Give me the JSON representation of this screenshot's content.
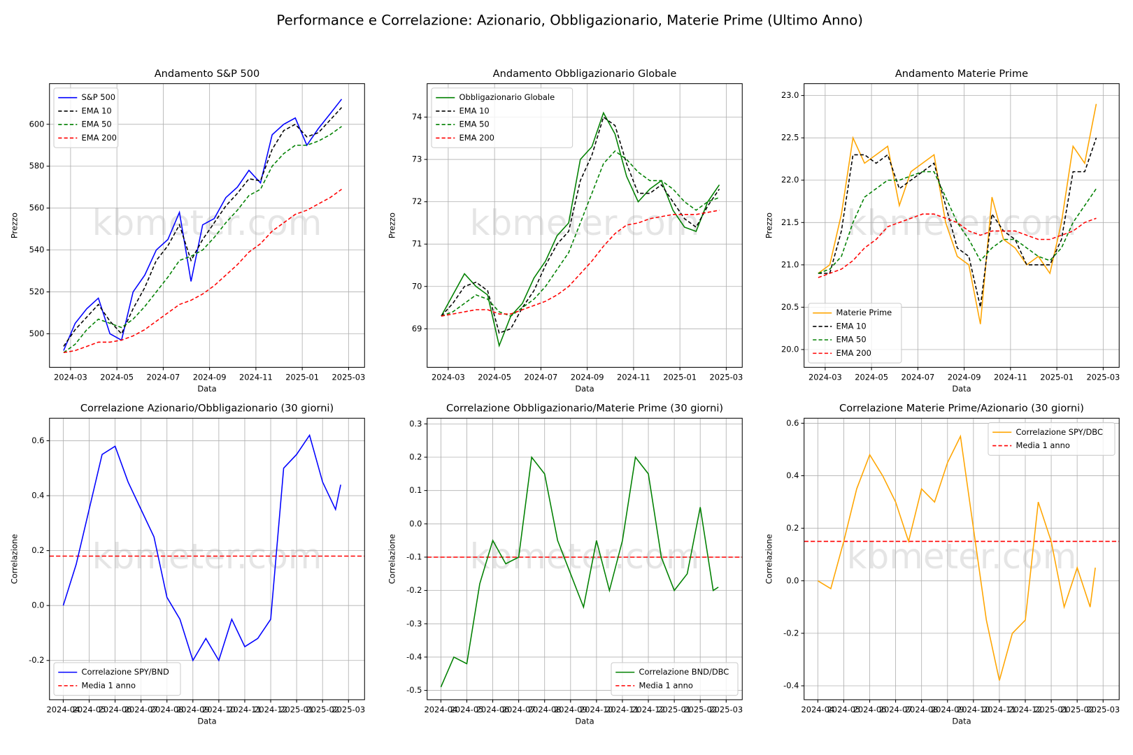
{
  "title": "Performance e Correlazione: Azionario, Obbligazionario, Materie Prime (Ultimo Anno)",
  "watermark": "kbmeter.com",
  "chart_data": [
    {
      "type": "line",
      "title": "Andamento S&P 500",
      "xlabel": "Data",
      "ylabel": "Prezzo",
      "grid": true,
      "legend": "upper left",
      "x": [
        2.7,
        3.2,
        3.7,
        4.2,
        4.7,
        5.2,
        5.7,
        6.2,
        6.7,
        7.2,
        7.7,
        8.2,
        8.7,
        9.2,
        9.7,
        10.2,
        10.7,
        11.2,
        11.7,
        12.2,
        12.7,
        13.2,
        13.7,
        14.2,
        14.7
      ],
      "xlim": [
        2.09,
        15.69
      ],
      "xticks": [
        {
          "value": 3,
          "label": "2024-03"
        },
        {
          "value": 5,
          "label": "2024-05"
        },
        {
          "value": 7,
          "label": "2024-07"
        },
        {
          "value": 9,
          "label": "2024-09"
        },
        {
          "value": 11,
          "label": "2024-11"
        },
        {
          "value": 13,
          "label": "2025-01"
        },
        {
          "value": 15,
          "label": "2025-03"
        }
      ],
      "ylim": [
        484,
        619.4
      ],
      "yticks": [
        500,
        520,
        540,
        560,
        580,
        600
      ],
      "series": [
        {
          "name": "S&P 500",
          "color": "#0000ff",
          "dashed": false,
          "values": [
            492,
            505,
            512,
            517,
            500,
            497,
            520,
            528,
            540,
            545,
            558,
            525,
            552,
            555,
            565,
            570,
            578,
            572,
            595,
            600,
            603,
            590,
            598,
            605,
            612
          ]
        },
        {
          "name": "EMA 10",
          "color": "#000000",
          "dashed": true,
          "values": [
            494,
            502,
            508,
            514,
            506,
            500,
            512,
            522,
            535,
            542,
            552,
            535,
            545,
            553,
            561,
            567,
            574,
            573,
            588,
            597,
            600,
            594,
            596,
            602,
            608
          ]
        },
        {
          "name": "EMA 50",
          "color": "#008000",
          "dashed": true,
          "values": [
            491,
            495,
            502,
            507,
            505,
            503,
            507,
            513,
            520,
            527,
            535,
            537,
            540,
            546,
            553,
            559,
            566,
            569,
            580,
            586,
            590,
            590,
            592,
            595,
            599
          ]
        },
        {
          "name": "EMA 200",
          "color": "#ff0000",
          "dashed": true,
          "values": [
            491,
            492,
            494,
            496,
            496,
            497,
            499,
            502,
            506,
            510,
            514,
            516,
            519,
            523,
            528,
            533,
            539,
            543,
            549,
            553,
            557,
            559,
            562,
            565,
            569
          ]
        }
      ]
    },
    {
      "type": "line",
      "title": "Andamento Obbligazionario Globale",
      "xlabel": "Data",
      "ylabel": "Prezzo",
      "grid": true,
      "legend": "upper left",
      "x": [
        2.7,
        3.2,
        3.7,
        4.2,
        4.7,
        5.2,
        5.7,
        6.2,
        6.7,
        7.2,
        7.7,
        8.2,
        8.7,
        9.2,
        9.7,
        10.2,
        10.7,
        11.2,
        11.7,
        12.2,
        12.7,
        13.2,
        13.7,
        14.2,
        14.7
      ],
      "xlim": [
        2.09,
        15.69
      ],
      "xticks": [
        {
          "value": 3,
          "label": "2024-03"
        },
        {
          "value": 5,
          "label": "2024-05"
        },
        {
          "value": 7,
          "label": "2024-07"
        },
        {
          "value": 9,
          "label": "2024-09"
        },
        {
          "value": 11,
          "label": "2024-11"
        },
        {
          "value": 13,
          "label": "2025-01"
        },
        {
          "value": 15,
          "label": "2025-03"
        }
      ],
      "ylim": [
        68.09,
        74.79
      ],
      "yticks": [
        69,
        70,
        71,
        72,
        73,
        74
      ],
      "series": [
        {
          "name": "Obbligazionario Globale",
          "color": "#008000",
          "dashed": false,
          "values": [
            69.3,
            69.8,
            70.3,
            70.0,
            69.8,
            68.6,
            69.3,
            69.6,
            70.2,
            70.6,
            71.2,
            71.5,
            73.0,
            73.3,
            74.1,
            73.6,
            72.6,
            72.0,
            72.3,
            72.5,
            71.8,
            71.4,
            71.3,
            72.0,
            72.4
          ]
        },
        {
          "name": "EMA 10",
          "color": "#000000",
          "dashed": true,
          "values": [
            69.3,
            69.6,
            70.0,
            70.1,
            69.9,
            68.9,
            69.0,
            69.5,
            69.9,
            70.5,
            71.0,
            71.3,
            72.5,
            73.1,
            74.0,
            73.8,
            72.9,
            72.2,
            72.2,
            72.4,
            72.0,
            71.6,
            71.4,
            71.9,
            72.3
          ]
        },
        {
          "name": "EMA 50",
          "color": "#008000",
          "dashed": true,
          "values": [
            69.3,
            69.4,
            69.6,
            69.8,
            69.7,
            69.4,
            69.3,
            69.5,
            69.7,
            70.0,
            70.4,
            70.8,
            71.5,
            72.2,
            72.9,
            73.2,
            73.0,
            72.7,
            72.5,
            72.5,
            72.3,
            72.0,
            71.8,
            72.0,
            72.1
          ]
        },
        {
          "name": "EMA 200",
          "color": "#ff0000",
          "dashed": true,
          "values": [
            69.3,
            69.35,
            69.4,
            69.45,
            69.45,
            69.35,
            69.35,
            69.45,
            69.55,
            69.65,
            69.8,
            70.0,
            70.3,
            70.6,
            70.95,
            71.25,
            71.45,
            71.5,
            71.6,
            71.65,
            71.7,
            71.7,
            71.7,
            71.75,
            71.8
          ]
        }
      ]
    },
    {
      "type": "line",
      "title": "Andamento Materie Prime",
      "xlabel": "Data",
      "ylabel": "Prezzo",
      "grid": true,
      "legend": "lower left",
      "x": [
        2.7,
        3.2,
        3.7,
        4.2,
        4.7,
        5.2,
        5.7,
        6.2,
        6.7,
        7.2,
        7.7,
        8.2,
        8.7,
        9.2,
        9.7,
        10.2,
        10.7,
        11.2,
        11.7,
        12.2,
        12.7,
        13.2,
        13.7,
        14.2,
        14.7
      ],
      "xlim": [
        2.09,
        15.69
      ],
      "xticks": [
        {
          "value": 3,
          "label": "2024-03"
        },
        {
          "value": 5,
          "label": "2024-05"
        },
        {
          "value": 7,
          "label": "2024-07"
        },
        {
          "value": 9,
          "label": "2024-09"
        },
        {
          "value": 11,
          "label": "2024-11"
        },
        {
          "value": 13,
          "label": "2025-01"
        },
        {
          "value": 15,
          "label": "2025-03"
        }
      ],
      "ylim": [
        19.79,
        23.14
      ],
      "yticks": [
        {
          "value": 20,
          "label": "20.0"
        },
        20.5,
        {
          "value": 21,
          "label": "21.0"
        },
        21.5,
        {
          "value": 22,
          "label": "22.0"
        },
        22.5,
        {
          "value": 23,
          "label": "23.0"
        }
      ],
      "series": [
        {
          "name": "Materie Prime",
          "color": "#ffa500",
          "dashed": false,
          "values": [
            20.9,
            21.0,
            21.6,
            22.5,
            22.2,
            22.3,
            22.4,
            21.7,
            22.1,
            22.2,
            22.3,
            21.5,
            21.1,
            21.0,
            20.3,
            21.8,
            21.3,
            21.2,
            21.0,
            21.1,
            20.9,
            21.5,
            22.4,
            22.2,
            22.9
          ]
        },
        {
          "name": "EMA 10",
          "color": "#000000",
          "dashed": true,
          "values": [
            20.9,
            20.9,
            21.4,
            22.3,
            22.3,
            22.2,
            22.3,
            21.9,
            22.0,
            22.1,
            22.2,
            21.7,
            21.2,
            21.1,
            20.5,
            21.6,
            21.4,
            21.3,
            21.0,
            21.0,
            21.0,
            21.3,
            22.1,
            22.1,
            22.5
          ]
        },
        {
          "name": "EMA 50",
          "color": "#008000",
          "dashed": true,
          "values": [
            20.9,
            20.95,
            21.1,
            21.5,
            21.8,
            21.9,
            22.0,
            22.0,
            22.05,
            22.1,
            22.1,
            21.8,
            21.5,
            21.3,
            21.05,
            21.2,
            21.3,
            21.3,
            21.2,
            21.1,
            21.05,
            21.2,
            21.5,
            21.7,
            21.9
          ]
        },
        {
          "name": "EMA 200",
          "color": "#ff0000",
          "dashed": true,
          "values": [
            20.85,
            20.9,
            20.95,
            21.05,
            21.2,
            21.3,
            21.45,
            21.5,
            21.55,
            21.6,
            21.6,
            21.55,
            21.5,
            21.4,
            21.35,
            21.4,
            21.4,
            21.4,
            21.35,
            21.3,
            21.3,
            21.35,
            21.4,
            21.5,
            21.55
          ]
        }
      ]
    },
    {
      "type": "line",
      "title": "Correlazione Azionario/Obbligazionario (30 giorni)",
      "xlabel": "Data",
      "ylabel": "Correlazione",
      "grid": true,
      "legend": "lower left",
      "x": [
        4.0,
        4.5,
        5.0,
        5.5,
        6.0,
        6.5,
        7.0,
        7.5,
        8.0,
        8.5,
        9.0,
        9.5,
        10.0,
        10.5,
        11.0,
        11.5,
        12.0,
        12.5,
        13.0,
        13.5,
        14.0,
        14.5,
        14.7
      ],
      "xlim": [
        3.47,
        15.62
      ],
      "xticks": [
        {
          "value": 4,
          "label": "2024-04"
        },
        {
          "value": 5,
          "label": "2024-05"
        },
        {
          "value": 6,
          "label": "2024-06"
        },
        {
          "value": 7,
          "label": "2024-07"
        },
        {
          "value": 8,
          "label": "2024-08"
        },
        {
          "value": 9,
          "label": "2024-09"
        },
        {
          "value": 10,
          "label": "2024-10"
        },
        {
          "value": 11,
          "label": "2024-11"
        },
        {
          "value": 12,
          "label": "2024-12"
        },
        {
          "value": 13,
          "label": "2025-01"
        },
        {
          "value": 14,
          "label": "2025-02"
        },
        {
          "value": 15,
          "label": "2025-03"
        }
      ],
      "ylim": [
        -0.343,
        0.682
      ],
      "yticks": [
        -0.2,
        {
          "value": 0,
          "label": "0.0"
        },
        0.2,
        0.4,
        0.6
      ],
      "series": [
        {
          "name": "Correlazione SPY/BND",
          "color": "#0000ff",
          "dashed": false,
          "values": [
            0.0,
            0.15,
            0.35,
            0.55,
            0.58,
            0.45,
            0.35,
            0.25,
            0.03,
            -0.05,
            -0.2,
            -0.12,
            -0.2,
            -0.05,
            -0.15,
            -0.12,
            -0.05,
            0.5,
            0.55,
            0.62,
            0.45,
            0.35,
            0.44
          ]
        }
      ],
      "reference_line": {
        "name": "Media 1 anno",
        "color": "#ff0000",
        "value": 0.18
      }
    },
    {
      "type": "line",
      "title": "Correlazione Obbligazionario/Materie Prime (30 giorni)",
      "xlabel": "Data",
      "ylabel": "Correlazione",
      "grid": true,
      "legend": "lower right",
      "x": [
        4.0,
        4.5,
        5.0,
        5.5,
        6.0,
        6.5,
        7.0,
        7.5,
        8.0,
        8.5,
        9.0,
        9.5,
        10.0,
        10.5,
        11.0,
        11.5,
        12.0,
        12.5,
        13.0,
        13.5,
        14.0,
        14.5,
        14.7
      ],
      "xlim": [
        3.47,
        15.62
      ],
      "xticks": [
        {
          "value": 4,
          "label": "2024-04"
        },
        {
          "value": 5,
          "label": "2024-05"
        },
        {
          "value": 6,
          "label": "2024-06"
        },
        {
          "value": 7,
          "label": "2024-07"
        },
        {
          "value": 8,
          "label": "2024-08"
        },
        {
          "value": 9,
          "label": "2024-09"
        },
        {
          "value": 10,
          "label": "2024-10"
        },
        {
          "value": 11,
          "label": "2024-11"
        },
        {
          "value": 12,
          "label": "2024-12"
        },
        {
          "value": 13,
          "label": "2025-01"
        },
        {
          "value": 14,
          "label": "2025-02"
        },
        {
          "value": 15,
          "label": "2025-03"
        }
      ],
      "ylim": [
        -0.528,
        0.317
      ],
      "yticks": [
        -0.5,
        -0.4,
        -0.3,
        -0.2,
        -0.1,
        {
          "value": 0,
          "label": "0.0"
        },
        0.1,
        0.2,
        0.3
      ],
      "series": [
        {
          "name": "Correlazione BND/DBC",
          "color": "#008000",
          "dashed": false,
          "values": [
            -0.49,
            -0.4,
            -0.42,
            -0.18,
            -0.05,
            -0.12,
            -0.1,
            0.2,
            0.15,
            -0.05,
            -0.15,
            -0.25,
            -0.05,
            -0.2,
            -0.05,
            0.2,
            0.15,
            -0.1,
            -0.2,
            -0.15,
            0.05,
            -0.2,
            -0.19
          ]
        }
      ],
      "reference_line": {
        "name": "Media 1 anno",
        "color": "#ff0000",
        "value": -0.1
      }
    },
    {
      "type": "line",
      "title": "Correlazione Materie Prime/Azionario (30 giorni)",
      "xlabel": "Data",
      "ylabel": "Correlazione",
      "grid": true,
      "legend": "upper right",
      "x": [
        4.0,
        4.5,
        5.0,
        5.5,
        6.0,
        6.5,
        7.0,
        7.5,
        8.0,
        8.5,
        9.0,
        9.5,
        10.0,
        10.5,
        11.0,
        11.5,
        12.0,
        12.5,
        13.0,
        13.5,
        14.0,
        14.5,
        14.7
      ],
      "xlim": [
        3.47,
        15.62
      ],
      "xticks": [
        {
          "value": 4,
          "label": "2024-04"
        },
        {
          "value": 5,
          "label": "2024-05"
        },
        {
          "value": 6,
          "label": "2024-06"
        },
        {
          "value": 7,
          "label": "2024-07"
        },
        {
          "value": 8,
          "label": "2024-08"
        },
        {
          "value": 9,
          "label": "2024-09"
        },
        {
          "value": 10,
          "label": "2024-10"
        },
        {
          "value": 11,
          "label": "2024-11"
        },
        {
          "value": 12,
          "label": "2024-12"
        },
        {
          "value": 13,
          "label": "2025-01"
        },
        {
          "value": 14,
          "label": "2025-02"
        },
        {
          "value": 15,
          "label": "2025-03"
        }
      ],
      "ylim": [
        -0.453,
        0.619
      ],
      "yticks": [
        -0.4,
        -0.2,
        {
          "value": 0,
          "label": "0.0"
        },
        0.2,
        0.4,
        0.6
      ],
      "series": [
        {
          "name": "Correlazione SPY/DBC",
          "color": "#ffa500",
          "dashed": false,
          "values": [
            0.0,
            -0.03,
            0.15,
            0.35,
            0.48,
            0.4,
            0.3,
            0.15,
            0.35,
            0.3,
            0.45,
            0.55,
            0.2,
            -0.15,
            -0.38,
            -0.2,
            -0.15,
            0.3,
            0.15,
            -0.1,
            0.05,
            -0.1,
            0.05
          ]
        }
      ],
      "reference_line": {
        "name": "Media 1 anno",
        "color": "#ff0000",
        "value": 0.15
      }
    }
  ]
}
